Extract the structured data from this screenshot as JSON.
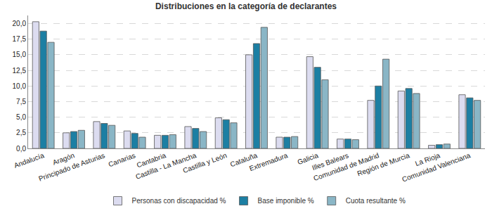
{
  "chart_data": {
    "type": "bar",
    "title": "Distribuciones en la categoría de declarantes",
    "categories": [
      "Andalucía",
      "Aragón",
      "Principado de Asturias",
      "Canarias",
      "Cantabria",
      "Castilla - La Mancha",
      "Castilla y León",
      "Cataluña",
      "Extremadura",
      "Galicia",
      "Illes Balears",
      "Comunidad de Madrid",
      "Región de Murcia",
      "La Rioja",
      "Comunidad Valenciana"
    ],
    "series": [
      {
        "name": "Personas con discapacidad %",
        "color": "#dcdcf0",
        "values": [
          20.3,
          2.5,
          4.3,
          2.8,
          2.1,
          3.5,
          4.9,
          15.0,
          1.8,
          14.7,
          1.5,
          7.7,
          9.2,
          0.5,
          8.6
        ]
      },
      {
        "name": "Base imponible %",
        "color": "#1c7fa3",
        "values": [
          18.8,
          2.7,
          4.0,
          2.4,
          2.1,
          3.2,
          4.6,
          16.8,
          1.8,
          13.0,
          1.5,
          10.0,
          9.6,
          0.6,
          8.1
        ]
      },
      {
        "name": "Cuota resultante %",
        "color": "#8ab6c6",
        "values": [
          17.0,
          2.9,
          3.7,
          1.8,
          2.2,
          2.7,
          4.1,
          19.4,
          1.9,
          11.0,
          1.4,
          14.3,
          8.8,
          0.7,
          7.7
        ]
      }
    ],
    "ylim": [
      0,
      21.3
    ],
    "yticks": [
      {
        "value": 0,
        "label": "0,0"
      },
      {
        "value": 2.5,
        "label": "2,5"
      },
      {
        "value": 5,
        "label": "5,0"
      },
      {
        "value": 7.5,
        "label": "7,5"
      },
      {
        "value": 10,
        "label": "10,0"
      },
      {
        "value": 12.5,
        "label": "12,5"
      },
      {
        "value": 15,
        "label": "15,0"
      },
      {
        "value": 17.5,
        "label": "17,5"
      },
      {
        "value": 20,
        "label": "20,0"
      }
    ],
    "grid": true,
    "legend": "bottom"
  }
}
